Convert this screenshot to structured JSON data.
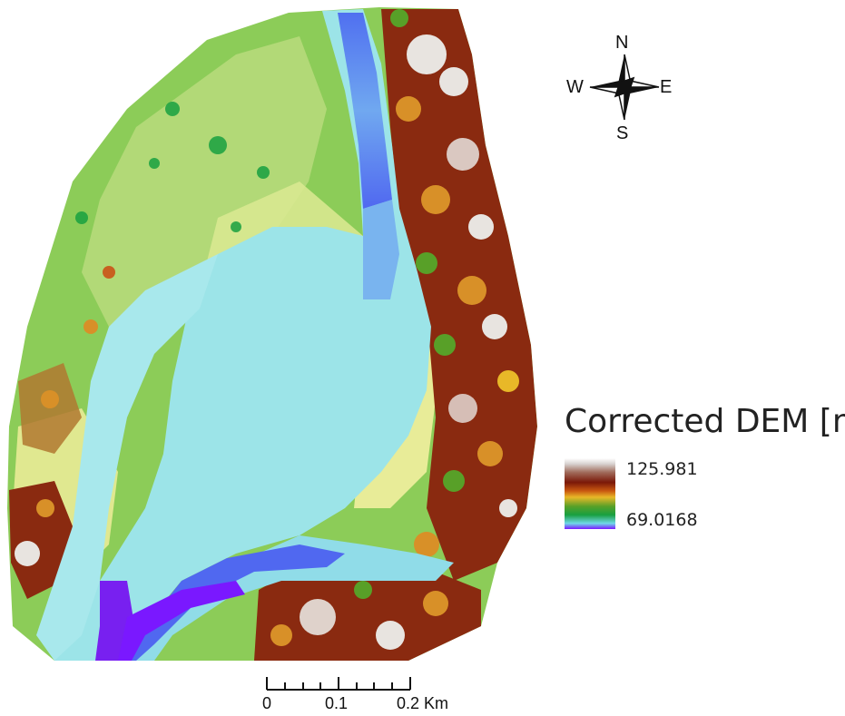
{
  "legend": {
    "title": "Corrected DEM [m]",
    "max_value": "125.981",
    "min_value": "69.0168",
    "ramp_colors": [
      "#ffffff",
      "#a06a5a",
      "#7a1808",
      "#c85810",
      "#e8b828",
      "#58a028",
      "#18a040",
      "#70d8e8",
      "#7a18ff"
    ]
  },
  "compass": {
    "north": "N",
    "south": "S",
    "east": "E",
    "west": "W"
  },
  "scale_bar": {
    "labels": [
      "0",
      "0.1",
      "0.2 Km"
    ]
  },
  "map_colors": {
    "floodplain_green": "#8ccc58",
    "sandbar_yellow": "#e8ec98",
    "channel_cyan": "#9ce4e8",
    "deep_channel_blue": "#4058f0",
    "deepest_purple": "#7820f0",
    "forest_brown": "#8a2a10",
    "forest_orange": "#d89028",
    "forest_white": "#e8e4e0"
  }
}
